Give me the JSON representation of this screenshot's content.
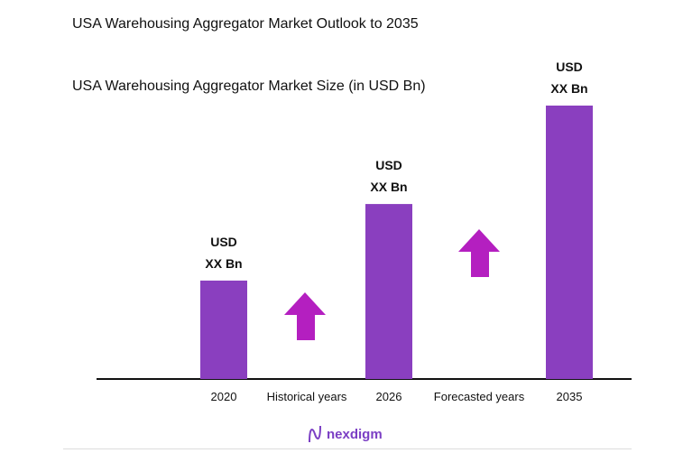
{
  "title": "USA Warehousing Aggregator Market Outlook to 2035",
  "subtitle": "USA Warehousing Aggregator Market Size (in USD Bn)",
  "logo_text": "nexdigm",
  "colors": {
    "bar": "#8a3fbf",
    "arrow": "#b41fc0",
    "logo": "#7b3fc4"
  },
  "chart_data": {
    "type": "bar",
    "categories": [
      "2020",
      "2026",
      "2035"
    ],
    "relative_values": [
      0.36,
      0.64,
      1.0
    ],
    "data_labels": [
      [
        "USD",
        "XX Bn"
      ],
      [
        "USD",
        "XX Bn"
      ],
      [
        "USD",
        "XX Bn"
      ]
    ],
    "period_labels": [
      "Historical years",
      "Forecasted years"
    ],
    "annotations": [
      "up-arrow-icon",
      "up-arrow-icon"
    ],
    "grid": false,
    "legend": "none"
  }
}
